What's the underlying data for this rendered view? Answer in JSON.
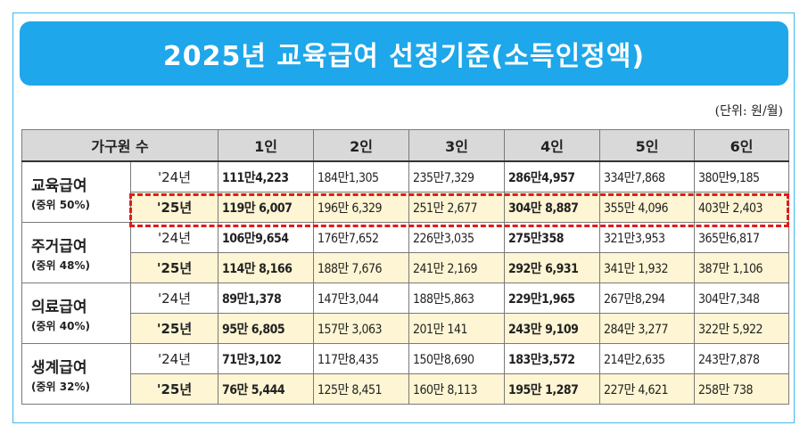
{
  "title": "2025년 교육급여 선정기준(소득인정액)",
  "unit_note": "(단위: 원/월)",
  "header": {
    "category_label": "가구원 수",
    "columns": [
      "1인",
      "2인",
      "3인",
      "4인",
      "5인",
      "6인"
    ]
  },
  "groups": [
    {
      "name": "교육급여",
      "sub": "(중위 50%)",
      "rows": [
        {
          "year": "'24년",
          "values": [
            "111만4,223",
            "184만1,305",
            "235만7,329",
            "286만4,957",
            "334만7,868",
            "380만9,185"
          ]
        },
        {
          "year": "'25년",
          "values": [
            "119만 6,007",
            "196만 6,329",
            "251만 2,677",
            "304만 8,887",
            "355만 4,096",
            "403만 2,403"
          ]
        }
      ]
    },
    {
      "name": "주거급여",
      "sub": "(중위 48%)",
      "rows": [
        {
          "year": "'24년",
          "values": [
            "106만9,654",
            "176만7,652",
            "226만3,035",
            "275만358",
            "321만3,953",
            "365만6,817"
          ]
        },
        {
          "year": "'25년",
          "values": [
            "114만 8,166",
            "188만 7,676",
            "241만 2,169",
            "292만 6,931",
            "341만 1,932",
            "387만 1,106"
          ]
        }
      ]
    },
    {
      "name": "의료급여",
      "sub": "(중위 40%)",
      "rows": [
        {
          "year": "'24년",
          "values": [
            "89만1,378",
            "147만3,044",
            "188만5,863",
            "229만1,965",
            "267만8,294",
            "304만7,348"
          ]
        },
        {
          "year": "'25년",
          "values": [
            "95만 6,805",
            "157만 3,063",
            "201만 141",
            "243만 9,109",
            "284만 3,277",
            "322만 5,922"
          ]
        }
      ]
    },
    {
      "name": "생계급여",
      "sub": "(중위 32%)",
      "rows": [
        {
          "year": "'24년",
          "values": [
            "71만3,102",
            "117만8,435",
            "150만8,690",
            "183만3,572",
            "214만2,635",
            "243만7,878"
          ]
        },
        {
          "year": "'25년",
          "values": [
            "76만 5,444",
            "125만 8,451",
            "160만 8,113",
            "195만 1,287",
            "227만 4,621",
            "258만 738"
          ]
        }
      ]
    }
  ],
  "colors": {
    "banner": "#1ea7ea",
    "highlight_row": "#fdf5d3",
    "dashed_box": "#e21b1b"
  }
}
